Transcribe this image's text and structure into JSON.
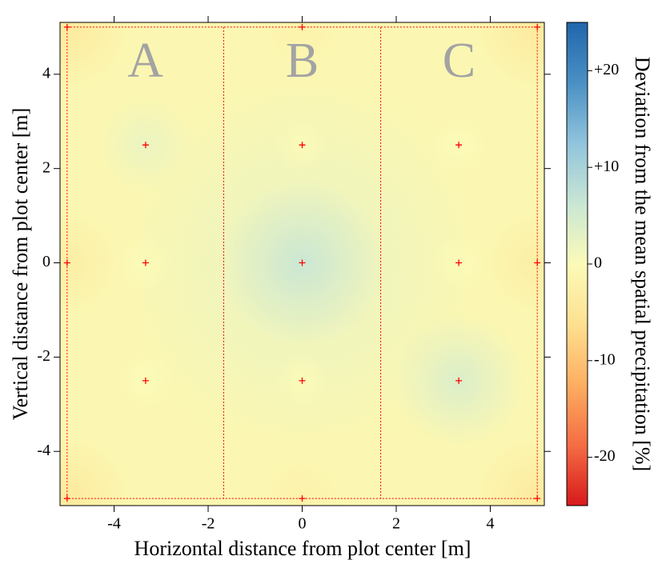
{
  "chart_data": {
    "type": "contour",
    "x_label": "Horizontal distance from plot center [m]",
    "y_label": "Vertical distance from plot center [m]",
    "colorbar_label": "Deviation from the mean spatial precipitation [%]",
    "xlim": [
      -5.15,
      5.15
    ],
    "ylim": [
      -5.15,
      5.1
    ],
    "xticks": [
      -4,
      -2,
      0,
      2,
      4
    ],
    "yticks": [
      -4,
      -2,
      0,
      2,
      4
    ],
    "colorbar_lim": [
      -25,
      25
    ],
    "colorbar_ticks": [
      {
        "value": 20,
        "label": "+20"
      },
      {
        "value": 10,
        "label": "+10"
      },
      0,
      -10,
      -20
    ],
    "colorscale": [
      "#d7191c",
      "#f46d43",
      "#fdae61",
      "#fee090",
      "#fbfbb8",
      "#c9e6d4",
      "#91c4dc",
      "#4a90c4",
      "#2166ac"
    ],
    "marker_color": "#ff0000",
    "region_labels": [
      "A",
      "B",
      "C"
    ],
    "region_bounds": [
      -5,
      -1.67,
      1.67,
      5
    ],
    "region_ylim": [
      -5,
      5
    ],
    "x": [
      -5,
      0,
      5,
      -3.33,
      0,
      3.33,
      -5,
      -3.33,
      0,
      3.33,
      5,
      -3.33,
      0,
      3.33,
      -5,
      0,
      5
    ],
    "y": [
      5,
      5,
      5,
      2.5,
      2.5,
      2.5,
      0,
      0,
      0,
      0,
      0,
      -2.5,
      -2.5,
      -2.5,
      -5,
      -5,
      -5
    ],
    "values": [
      -4,
      -2,
      -4,
      2,
      0,
      0,
      -3,
      0,
      6,
      0,
      -3,
      0,
      0,
      4,
      -4,
      -2,
      -4
    ]
  }
}
